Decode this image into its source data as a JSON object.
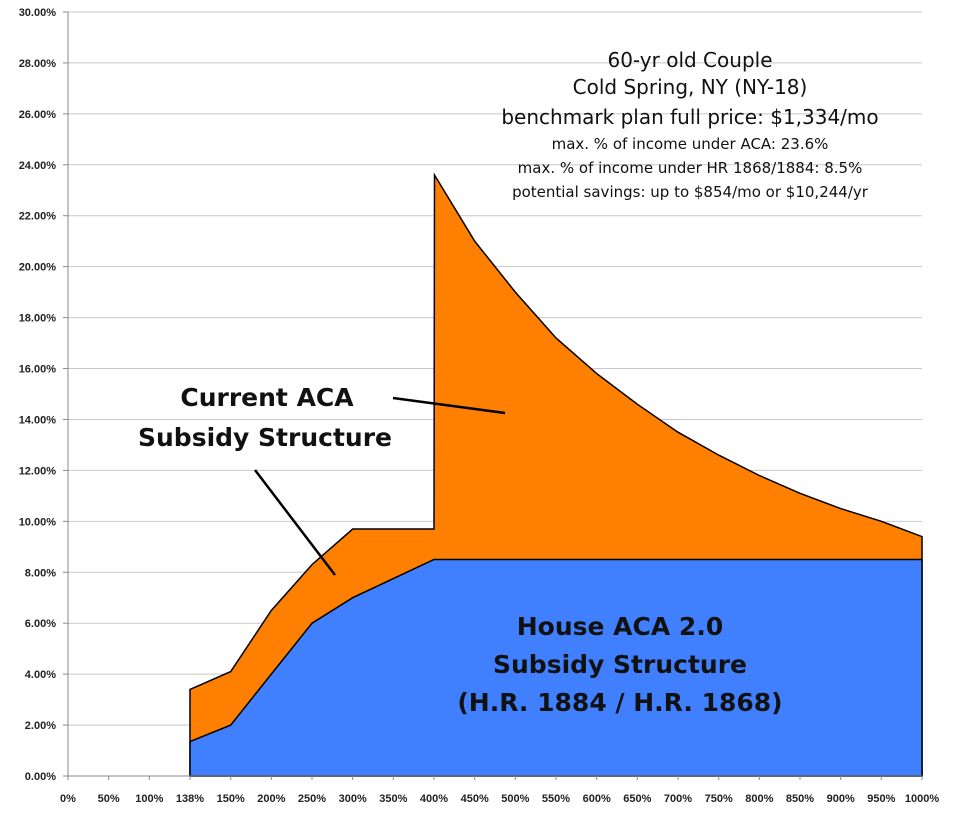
{
  "chart_data": {
    "type": "area",
    "title": "",
    "xlabel": "",
    "ylabel": "",
    "categories": [
      "0%",
      "50%",
      "100%",
      "138%",
      "150%",
      "200%",
      "250%",
      "300%",
      "350%",
      "400%",
      "450%",
      "500%",
      "550%",
      "600%",
      "650%",
      "700%",
      "750%",
      "800%",
      "850%",
      "900%",
      "950%",
      "1000%"
    ],
    "emphasized_categories": [
      "138%",
      "400%"
    ],
    "ylim": [
      0,
      30
    ],
    "yticks": [
      "0.00%",
      "2.00%",
      "4.00%",
      "6.00%",
      "8.00%",
      "10.00%",
      "12.00%",
      "14.00%",
      "16.00%",
      "18.00%",
      "20.00%",
      "22.00%",
      "24.00%",
      "26.00%",
      "28.00%",
      "30.00%"
    ],
    "grid": true,
    "series": [
      {
        "name": "Current ACA Subsidy Structure",
        "color": "#ff8000",
        "values": [
          null,
          null,
          null,
          3.4,
          4.1,
          6.5,
          8.3,
          9.7,
          9.7,
          9.7,
          21.0,
          19.0,
          17.2,
          15.8,
          14.6,
          13.5,
          12.6,
          11.8,
          11.1,
          10.5,
          10.0,
          9.4
        ],
        "jump_at_400": 23.6
      },
      {
        "name": "House ACA 2.0 Subsidy Structure (H.R. 1884 / H.R. 1868)",
        "color": "#4080ff",
        "values": [
          null,
          null,
          null,
          1.35,
          2.0,
          4.0,
          6.0,
          7.0,
          7.75,
          8.5,
          8.5,
          8.5,
          8.5,
          8.5,
          8.5,
          8.5,
          8.5,
          8.5,
          8.5,
          8.5,
          8.5,
          8.5
        ]
      }
    ],
    "annotations": {
      "info_lines": [
        "60-yr old Couple",
        "Cold Spring, NY (NY-18)",
        "benchmark plan full price: $1,334/mo",
        "max. % of income under ACA: 23.6%",
        "max. % of income under HR 1868/1884: 8.5%",
        "potential savings: up to $854/mo or $10,244/yr"
      ],
      "aca_label": [
        "Current ACA",
        "Subsidy Structure"
      ],
      "house_label": [
        "House ACA 2.0",
        "Subsidy Structure",
        "(H.R. 1884 / H.R. 1868)"
      ]
    }
  }
}
